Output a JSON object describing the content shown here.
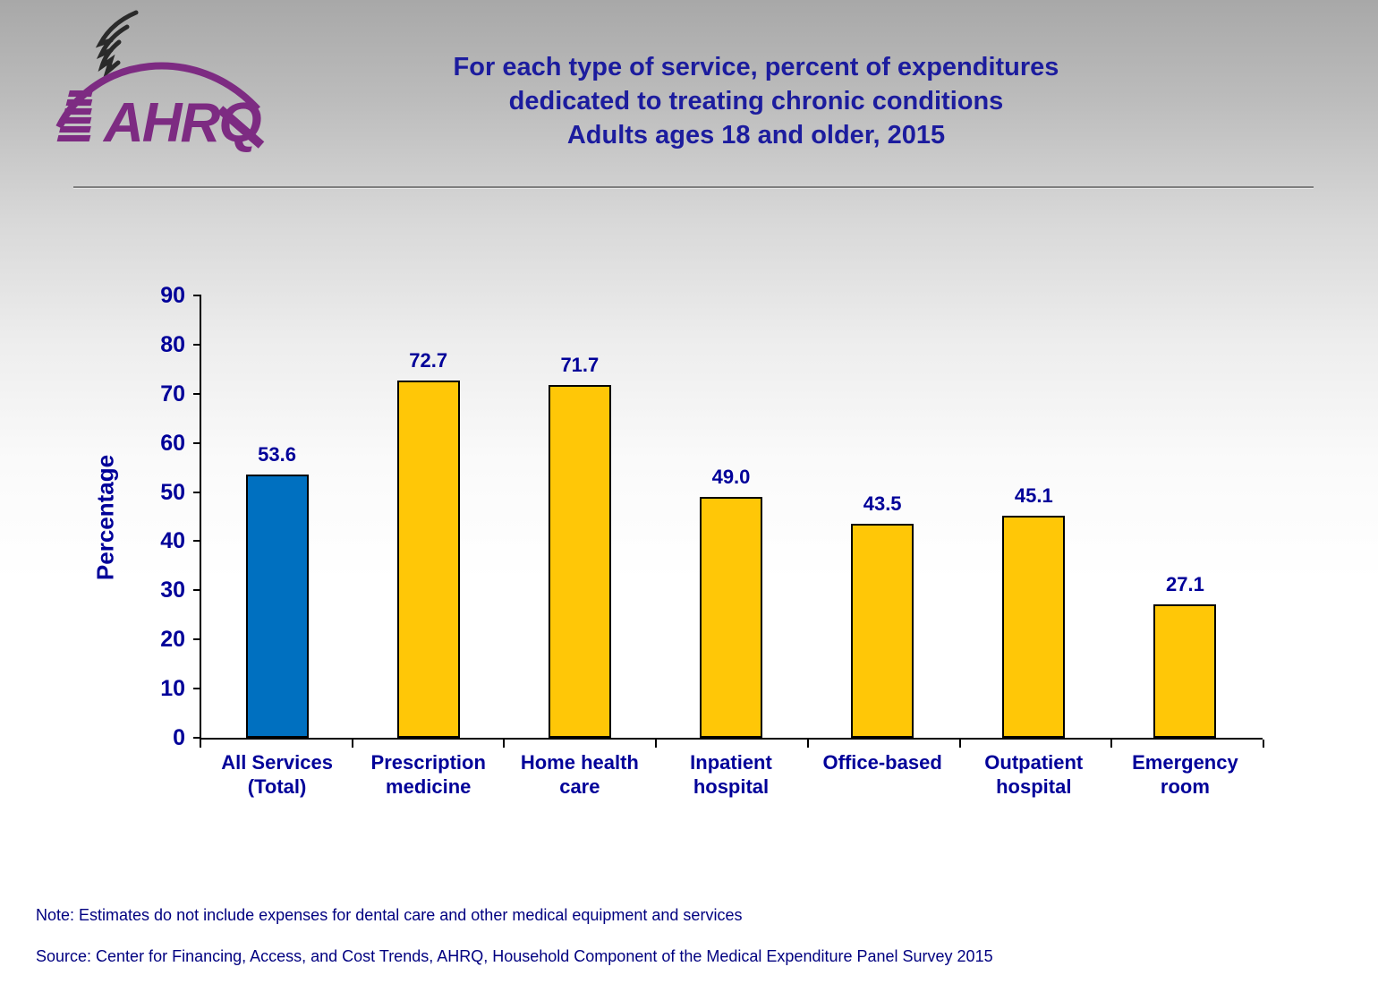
{
  "logo": {
    "org": "AHRQ",
    "brand_color": "#7d2b82",
    "eagle_color": "#2a2a2a"
  },
  "title": {
    "lines": [
      "For each type of service, percent of expenditures",
      "dedicated to treating chronic conditions",
      "Adults ages 18 and older, 2015"
    ],
    "color": "#1c1c9e"
  },
  "chart_data": {
    "type": "bar",
    "categories": [
      "All Services\n(Total)",
      "Prescription\nmedicine",
      "Home health\ncare",
      "Inpatient\nhospital",
      "Office-based",
      "Outpatient\nhospital",
      "Emergency\nroom"
    ],
    "values": [
      53.6,
      72.7,
      71.7,
      49.0,
      43.5,
      45.1,
      27.1
    ],
    "value_labels": [
      "53.6",
      "72.7",
      "71.7",
      "49.0",
      "43.5",
      "45.1",
      "27.1"
    ],
    "bar_colors": [
      "#0070c0",
      "#ffc707",
      "#ffc707",
      "#ffc707",
      "#ffc707",
      "#ffc707",
      "#ffc707"
    ],
    "bar_border_color": "#000000",
    "title": "",
    "xlabel": "",
    "ylabel": "Percentage",
    "ylim": [
      0,
      90
    ],
    "yticks": [
      0,
      10,
      20,
      30,
      40,
      50,
      60,
      70,
      80,
      90
    ],
    "grid": false,
    "legend": false,
    "text_color": "#000099"
  },
  "notes": {
    "note": "Note: Estimates do not include expenses for dental care and other medical equipment and services",
    "source": "Source: Center for Financing, Access, and Cost Trends, AHRQ, Household Component of the Medical Expenditure Panel Survey 2015"
  }
}
